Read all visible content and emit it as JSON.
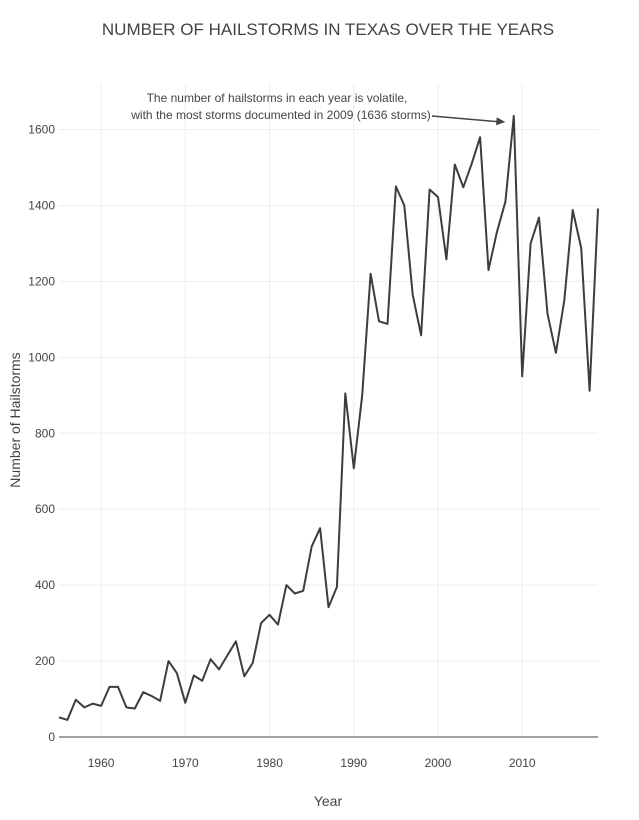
{
  "chart_data": {
    "type": "line",
    "title": "NUMBER OF HAILSTORMS IN TEXAS OVER THE YEARS",
    "xlabel": "Year",
    "ylabel": "Number of Hailstorms",
    "xlim": [
      1955,
      2019
    ],
    "ylim": [
      0,
      1720
    ],
    "x_ticks": [
      1960,
      1970,
      1980,
      1990,
      2000,
      2010
    ],
    "y_ticks": [
      0,
      200,
      400,
      600,
      800,
      1000,
      1200,
      1400,
      1600
    ],
    "grid": true,
    "line_color": "#3d3d3d",
    "x": [
      1955,
      1956,
      1957,
      1958,
      1959,
      1960,
      1961,
      1962,
      1963,
      1964,
      1965,
      1966,
      1967,
      1968,
      1969,
      1970,
      1971,
      1972,
      1973,
      1974,
      1975,
      1976,
      1977,
      1978,
      1979,
      1980,
      1981,
      1982,
      1983,
      1984,
      1985,
      1986,
      1987,
      1988,
      1989,
      1990,
      1991,
      1992,
      1993,
      1994,
      1995,
      1996,
      1997,
      1998,
      1999,
      2000,
      2001,
      2002,
      2003,
      2004,
      2005,
      2006,
      2007,
      2008,
      2009,
      2010,
      2011,
      2012,
      2013,
      2014,
      2015,
      2016,
      2017,
      2018,
      2019
    ],
    "values": [
      52,
      45,
      98,
      78,
      88,
      82,
      132,
      132,
      78,
      75,
      118,
      108,
      95,
      200,
      168,
      90,
      162,
      148,
      205,
      178,
      215,
      252,
      160,
      195,
      300,
      322,
      296,
      400,
      378,
      385,
      502,
      550,
      342,
      395,
      905,
      708,
      900,
      1220,
      1095,
      1088,
      1450,
      1400,
      1165,
      1058,
      1442,
      1422,
      1258,
      1508,
      1448,
      1510,
      1580,
      1230,
      1330,
      1410,
      1636,
      950,
      1300,
      1368,
      1115,
      1012,
      1150,
      1388,
      1288,
      912,
      1392
    ],
    "annotation": {
      "lines": [
        "The number of hailstorms in each year is volatile,",
        "with the most storms documented in 2009 (1636 storms)"
      ],
      "x": 2008,
      "y": 1620
    }
  }
}
